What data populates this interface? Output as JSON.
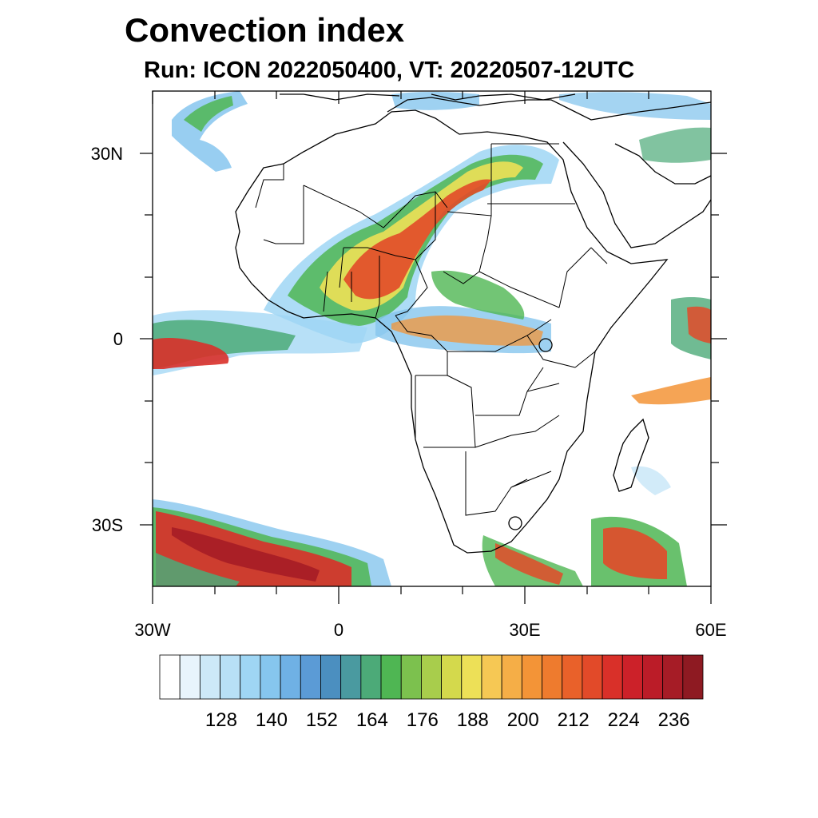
{
  "title": "Convection index",
  "subtitle": "Run: ICON 2022050400,  VT: 20220507-12UTC",
  "map": {
    "lat_labels": [
      "30N",
      "0",
      "30S"
    ],
    "lon_labels": [
      "30W",
      "0",
      "30E",
      "60E"
    ],
    "extent": {
      "lon_min": -30,
      "lon_max": 60,
      "lat_min": -40,
      "lat_max": 40
    }
  },
  "colorbar": {
    "colors": [
      "#ffffff",
      "#e8f4fc",
      "#cde9f8",
      "#b8e0f6",
      "#9fd6f4",
      "#86c6ee",
      "#6fb1e5",
      "#5b9bd6",
      "#4b8fc0",
      "#4a9aa0",
      "#4caa78",
      "#4fb653",
      "#7cc14e",
      "#a8cd4c",
      "#d4d94c",
      "#ede057",
      "#f6c854",
      "#f5ae47",
      "#f39437",
      "#ee7b2e",
      "#e9612a",
      "#e24a29",
      "#d93029",
      "#cc2129",
      "#bb1c28",
      "#a61c26",
      "#8e1a22"
    ],
    "tick_labels": [
      "128",
      "140",
      "152",
      "164",
      "176",
      "188",
      "200",
      "212",
      "224",
      "236"
    ]
  }
}
